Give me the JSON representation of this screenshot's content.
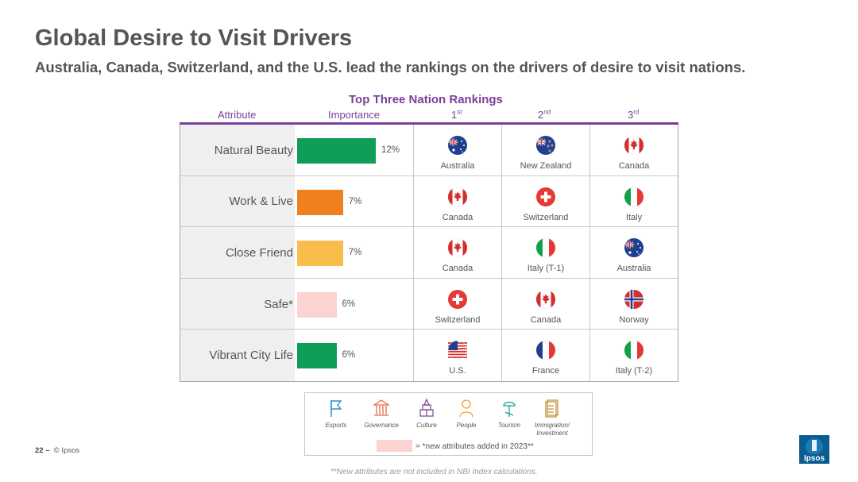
{
  "title": "Global Desire to Visit Drivers",
  "subtitle": "Australia, Canada, Switzerland, and the U.S. lead the rankings on the drivers of desire to visit nations.",
  "table_title": "Top Three Nation Rankings",
  "headers": {
    "attribute": "Attribute",
    "importance": "Importance",
    "rank1": "1",
    "rank1_sup": "st",
    "rank2": "2",
    "rank2_sup": "nd",
    "rank3": "3",
    "rank3_sup": "rd"
  },
  "rows": [
    {
      "attribute": "Natural Beauty",
      "importance": "12%",
      "importance_value": 12,
      "bar_color": "#0f9d58",
      "ranks": [
        {
          "country": "Australia",
          "flag": "australia-flag-icon"
        },
        {
          "country": "New Zealand",
          "flag": "new-zealand-flag-icon"
        },
        {
          "country": "Canada",
          "flag": "canada-flag-icon"
        }
      ]
    },
    {
      "attribute": "Work & Live",
      "importance": "7%",
      "importance_value": 7,
      "bar_color": "#f07f1e",
      "ranks": [
        {
          "country": "Canada",
          "flag": "canada-flag-icon"
        },
        {
          "country": "Switzerland",
          "flag": "switzerland-flag-icon"
        },
        {
          "country": "Italy",
          "flag": "italy-flag-icon"
        }
      ]
    },
    {
      "attribute": "Close Friend",
      "importance": "7%",
      "importance_value": 7,
      "bar_color": "#f8bd4a",
      "ranks": [
        {
          "country": "Canada",
          "flag": "canada-flag-icon"
        },
        {
          "country": "Italy (T-1)",
          "flag": "italy-flag-icon"
        },
        {
          "country": "Australia",
          "flag": "australia-flag-icon"
        }
      ]
    },
    {
      "attribute": "Safe*",
      "importance": "6%",
      "importance_value": 6,
      "bar_color": "#fbd3d0",
      "ranks": [
        {
          "country": "Switzerland",
          "flag": "switzerland-flag-icon"
        },
        {
          "country": "Canada",
          "flag": "canada-flag-icon"
        },
        {
          "country": "Norway",
          "flag": "norway-flag-icon"
        }
      ]
    },
    {
      "attribute": "Vibrant City Life",
      "importance": "6%",
      "importance_value": 6,
      "bar_color": "#0f9d58",
      "ranks": [
        {
          "country": "U.S.",
          "flag": "usa-flag-icon"
        },
        {
          "country": "France",
          "flag": "france-flag-icon"
        },
        {
          "country": "Italy (T-2)",
          "flag": "italy-flag-icon"
        }
      ]
    }
  ],
  "legend": {
    "items": [
      {
        "label": "Exports",
        "icon": "flag-icon",
        "color": "#2f8fcf"
      },
      {
        "label": "Governance",
        "icon": "building-icon",
        "color": "#e06a4a"
      },
      {
        "label": "Culture",
        "icon": "culture-icon",
        "color": "#7b3f98"
      },
      {
        "label": "People",
        "icon": "person-icon",
        "color": "#f0a11e"
      },
      {
        "label": "Tourism",
        "icon": "tourism-icon",
        "color": "#1aa58a"
      },
      {
        "label": "Immigration/ Investment",
        "icon": "document-icon",
        "color": "#c0892e"
      }
    ],
    "note": "= *new attributes added in 2023**"
  },
  "footnote": "**New attributes are not included in NBI Index calculations.",
  "page_number": "22",
  "page_sep": "–",
  "copyright": "© Ipsos",
  "logo_text": "Ipsos",
  "colors": {
    "accent": "#7b3f98",
    "logo": "#0a5c91"
  }
}
